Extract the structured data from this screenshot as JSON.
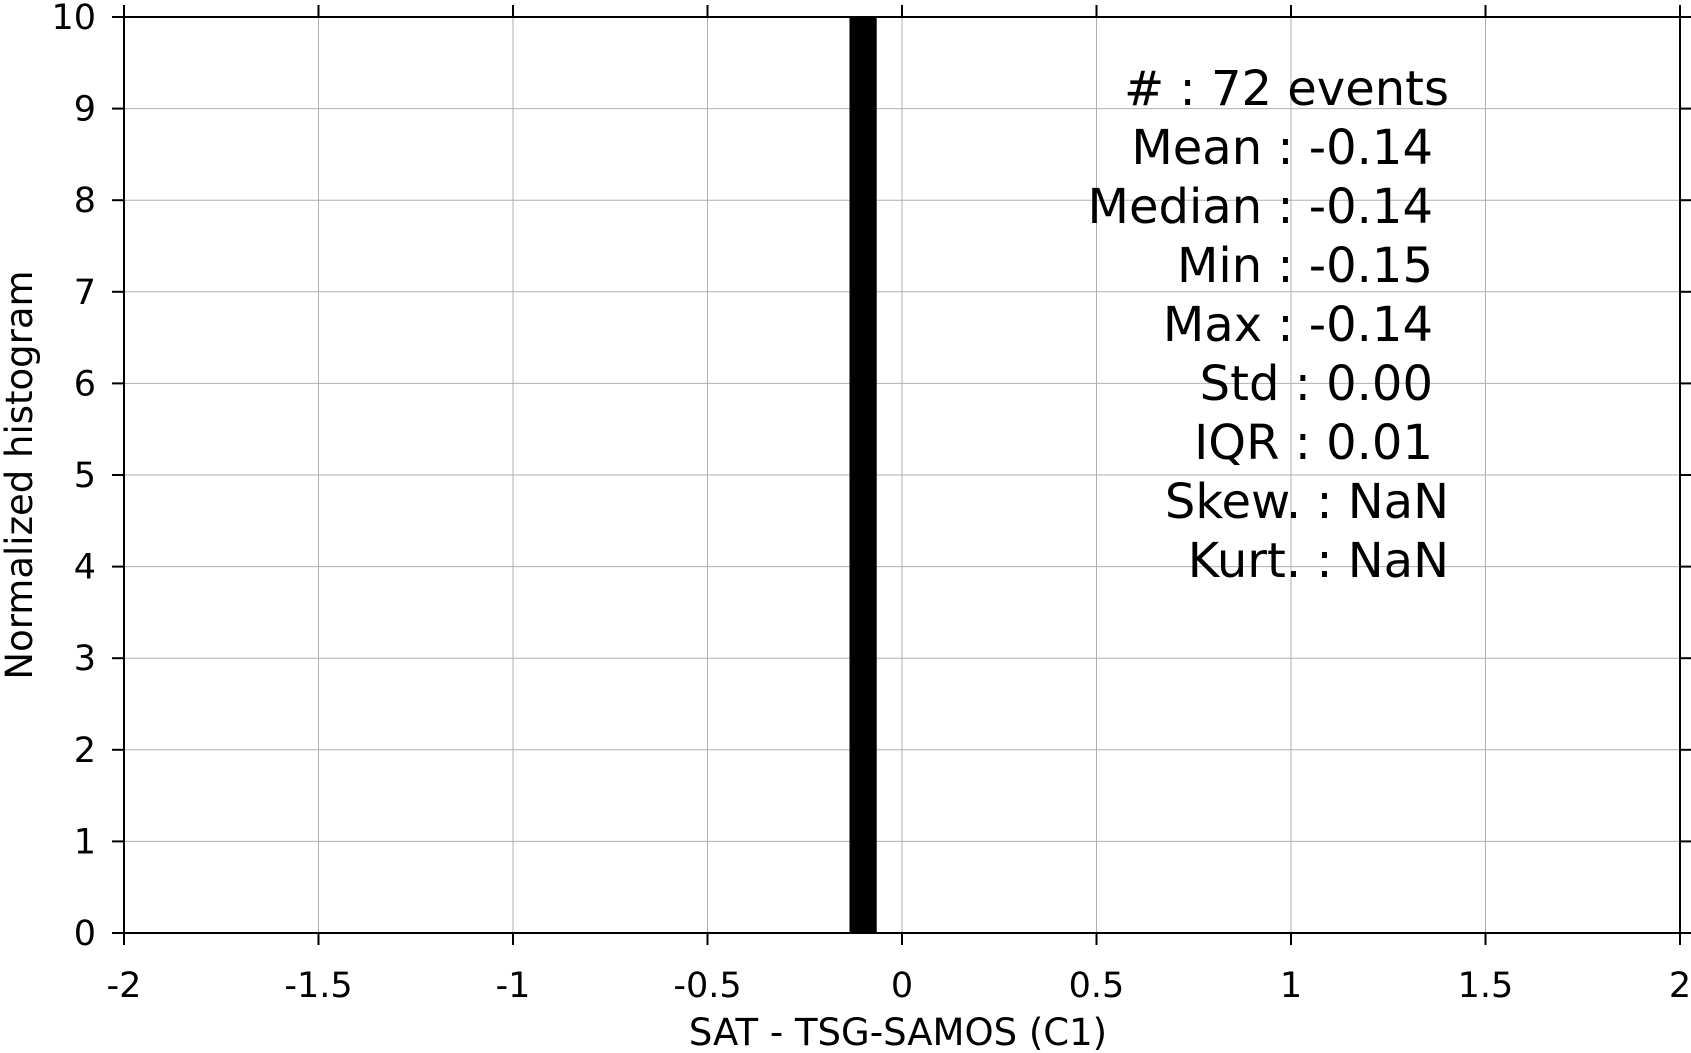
{
  "chart_data": {
    "type": "bar",
    "title": "",
    "xlabel": "SAT - TSG-SAMOS (C1)",
    "ylabel": "Normalized histogram",
    "xlim": [
      -2,
      2
    ],
    "ylim": [
      0,
      10
    ],
    "xticks": [
      -2,
      -1.5,
      -1,
      -0.5,
      0,
      0.5,
      1,
      1.5,
      2
    ],
    "xtick_labels": [
      "-2",
      "-1.5",
      "-1",
      "-0.5",
      "0",
      "0.5",
      "1",
      "1.5",
      "2"
    ],
    "yticks": [
      0,
      1,
      2,
      3,
      4,
      5,
      6,
      7,
      8,
      9,
      10
    ],
    "ytick_labels": [
      "0",
      "1",
      "2",
      "3",
      "4",
      "5",
      "6",
      "7",
      "8",
      "9",
      "10"
    ],
    "grid": true,
    "bars": [
      {
        "x_start": -0.135,
        "x_end": -0.065,
        "value": 10
      }
    ],
    "bar_color": "#000000",
    "grid_color": "#b0b0b0",
    "annotations": [
      {
        "text": "#  : 72 events"
      },
      {
        "text": "Mean : -0.14"
      },
      {
        "text": "Median : -0.14"
      },
      {
        "text": "Min : -0.15"
      },
      {
        "text": "Max : -0.14"
      },
      {
        "text": "Std : 0.00"
      },
      {
        "text": "IQR : 0.01"
      },
      {
        "text": "Skew. : NaN"
      },
      {
        "text": "Kurt. : NaN"
      }
    ]
  }
}
